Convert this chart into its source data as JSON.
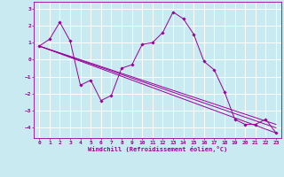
{
  "xlabel": "Windchill (Refroidissement éolien,°C)",
  "background_color": "#c8eaf0",
  "line_color": "#990099",
  "grid_color": "#ffffff",
  "xlim": [
    -0.5,
    23.5
  ],
  "ylim": [
    -4.6,
    3.4
  ],
  "xticks": [
    0,
    1,
    2,
    3,
    4,
    5,
    6,
    7,
    8,
    9,
    10,
    11,
    12,
    13,
    14,
    15,
    16,
    17,
    18,
    19,
    20,
    21,
    22,
    23
  ],
  "yticks": [
    -4,
    -3,
    -2,
    -1,
    0,
    1,
    2,
    3
  ],
  "main_series": {
    "x": [
      0,
      1,
      2,
      3,
      4,
      5,
      6,
      7,
      8,
      9,
      10,
      11,
      12,
      13,
      14,
      15,
      16,
      17,
      18,
      19,
      20,
      21,
      22,
      23
    ],
    "y": [
      0.8,
      1.2,
      2.2,
      1.1,
      -1.5,
      -1.2,
      -2.4,
      -2.1,
      -0.5,
      -0.3,
      0.9,
      1.0,
      1.6,
      2.8,
      2.4,
      1.5,
      -0.1,
      -0.6,
      -1.9,
      -3.5,
      -3.8,
      -3.8,
      -3.5,
      -4.3
    ]
  },
  "trend_lines": [
    {
      "x": [
        0,
        23
      ],
      "y": [
        0.8,
        -4.3
      ]
    },
    {
      "x": [
        0,
        23
      ],
      "y": [
        0.8,
        -4.0
      ]
    },
    {
      "x": [
        0,
        23
      ],
      "y": [
        0.8,
        -3.8
      ]
    }
  ]
}
